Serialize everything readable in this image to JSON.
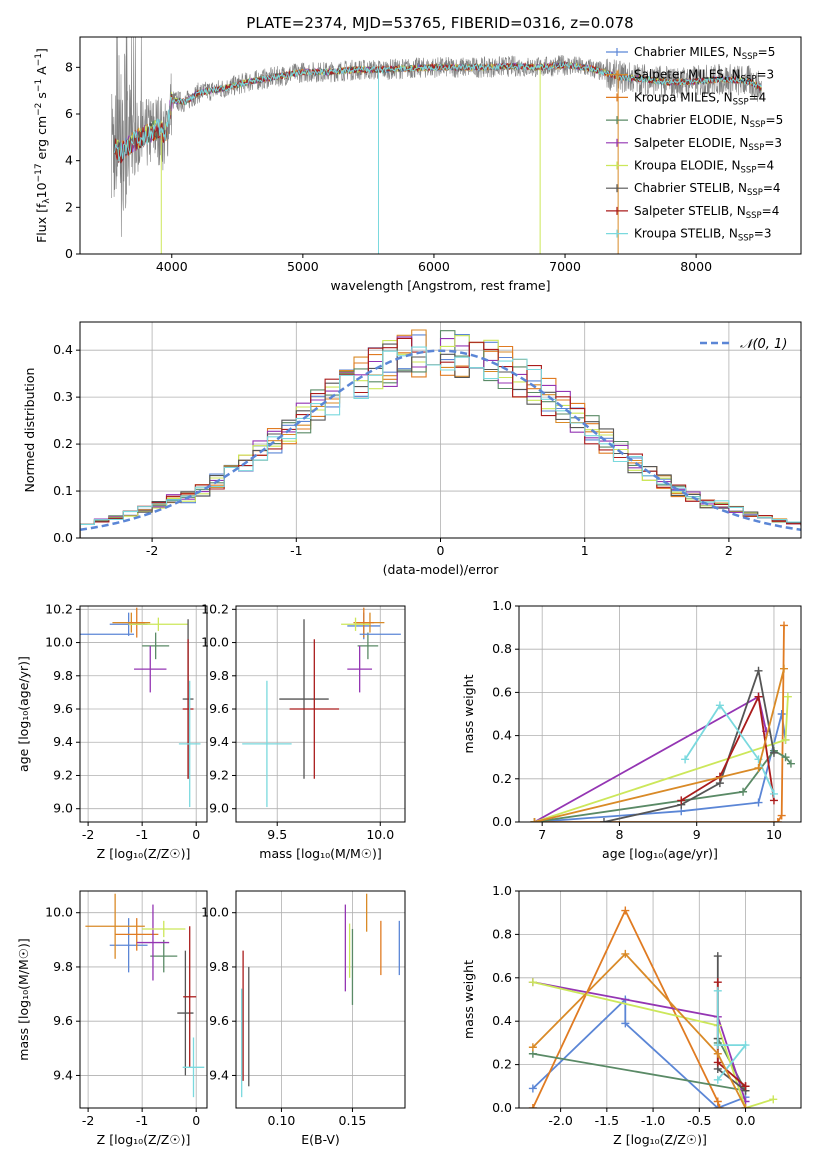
{
  "figure_title": "PLATE=2374, MJD=53765, FIBERID=0316, z=0.078",
  "series": [
    {
      "label": "Chabrier MILES, N",
      "sub": "SSP",
      "n": "=5",
      "color": "#5b86d6"
    },
    {
      "label": "Salpeter MILES, N",
      "sub": "SSP",
      "n": "=3",
      "color": "#d98a27"
    },
    {
      "label": "Kroupa MILES, N",
      "sub": "SSP",
      "n": "=4",
      "color": "#e07b22"
    },
    {
      "label": "Chabrier ELODIE, N",
      "sub": "SSP",
      "n": "=5",
      "color": "#5a8a66"
    },
    {
      "label": "Salpeter ELODIE, N",
      "sub": "SSP",
      "n": "=3",
      "color": "#9435b3"
    },
    {
      "label": "Kroupa ELODIE, N",
      "sub": "SSP",
      "n": "=4",
      "color": "#cce75a"
    },
    {
      "label": "Chabrier STELIB, N",
      "sub": "SSP",
      "n": "=4",
      "color": "#555555"
    },
    {
      "label": "Salpeter STELIB, N",
      "sub": "SSP",
      "n": "=4",
      "color": "#aa1c1c"
    },
    {
      "label": "Kroupa STELIB, N",
      "sub": "SSP",
      "n": "=3",
      "color": "#7ad9de"
    }
  ],
  "chart_data": [
    {
      "id": "spectrum",
      "type": "line",
      "xlabel": "wavelength [Angstrom, rest frame]",
      "ylabel_parts": [
        "Flux [f",
        "λ",
        "10",
        "−17",
        " erg cm",
        "−2",
        " s",
        "−1",
        " A",
        "−1",
        "]"
      ],
      "xlim": [
        3300,
        8800
      ],
      "ylim": [
        0,
        9.3
      ],
      "xticks": [
        4000,
        5000,
        6000,
        7000,
        8000
      ],
      "yticks": [
        0,
        2,
        4,
        6,
        8
      ],
      "data_color": "#808080",
      "model_color": "#7ad9de",
      "continuum_x": [
        3540,
        3600,
        3700,
        3800,
        3900,
        3950,
        4000,
        4100,
        4200,
        4400,
        4600,
        4800,
        5000,
        5200,
        5400,
        5600,
        5800,
        6000,
        6200,
        6400,
        6600,
        6800,
        7000,
        7200,
        7400,
        7600,
        7800,
        8000,
        8200,
        8400,
        8500
      ],
      "continuum_y": [
        5.0,
        4.3,
        4.8,
        5.1,
        5.4,
        5.0,
        6.6,
        6.5,
        6.9,
        7.1,
        7.4,
        7.6,
        7.8,
        7.8,
        7.9,
        7.9,
        7.95,
        8.0,
        8.0,
        8.0,
        8.05,
        8.0,
        8.1,
        7.95,
        7.6,
        7.5,
        7.35,
        7.4,
        7.5,
        7.4,
        7.1
      ]
    },
    {
      "id": "residuals",
      "type": "histogram",
      "xlabel": "(data-model)/error",
      "ylabel": "Normed distribution",
      "xlim": [
        -2.5,
        2.5
      ],
      "ylim": [
        0,
        0.46
      ],
      "xticks": [
        -2,
        -1,
        0,
        1,
        2
      ],
      "yticks": [
        0.0,
        0.1,
        0.2,
        0.3,
        0.4
      ],
      "legend": "𝒩(0, 1)",
      "legend_color": "#5b86d6",
      "bin_width": 0.1,
      "x_start": -2.5,
      "base": [
        0.025,
        0.03,
        0.035,
        0.04,
        0.045,
        0.055,
        0.06,
        0.065,
        0.07,
        0.075,
        0.09,
        0.1,
        0.11,
        0.12,
        0.135,
        0.15,
        0.165,
        0.18,
        0.2,
        0.215,
        0.235,
        0.25,
        0.27,
        0.29,
        0.3,
        0.315,
        0.33,
        0.345,
        0.35,
        0.365,
        0.37,
        0.375,
        0.38,
        0.385,
        0.39,
        0.39,
        0.395,
        0.4,
        0.395,
        0.395,
        0.39,
        0.385,
        0.38,
        0.375,
        0.36,
        0.355,
        0.345,
        0.335,
        0.32,
        0.305,
        0.295,
        0.28,
        0.265,
        0.25,
        0.23,
        0.215,
        0.2,
        0.185,
        0.17,
        0.155,
        0.14,
        0.125,
        0.11,
        0.1,
        0.09,
        0.08,
        0.07,
        0.065,
        0.055,
        0.05,
        0.045,
        0.04,
        0.035,
        0.03,
        0.028,
        0.025,
        0.022,
        0.02,
        0.018,
        0.016,
        0.015,
        0.014,
        0.013,
        0.012,
        0.011,
        0.01,
        0.01,
        0.01,
        0.01,
        0.01,
        0.01,
        0.01,
        0.01,
        0.01,
        0.01,
        0.01,
        0.01,
        0.01,
        0.01,
        0.01
      ]
    },
    {
      "id": "age_vs_Z",
      "type": "scatter",
      "xlabel": "Z [log₁₀(Z/Z☉)]",
      "ylabel": "age  [log₁₀(age/yr)]",
      "xlim": [
        -2.15,
        0.2
      ],
      "ylim": [
        8.92,
        10.22
      ],
      "xticks": [
        -2,
        -1,
        0
      ],
      "yticks": [
        9.0,
        9.2,
        9.4,
        9.6,
        9.8,
        10.0,
        10.2
      ],
      "points": [
        {
          "s": 0,
          "x": -1.25,
          "y": 10.11,
          "xerr": 0.35,
          "yerr": 0.07
        },
        {
          "s": 1,
          "x": -1.2,
          "y": 10.12,
          "xerr": 0.35,
          "yerr": 0.06
        },
        {
          "s": 2,
          "x": -1.1,
          "y": 10.12,
          "xerr": 0.15,
          "yerr": 0.09
        },
        {
          "s": 3,
          "x": -0.75,
          "y": 9.98,
          "xerr": 0.25,
          "yerr": 0.08
        },
        {
          "s": 4,
          "x": -0.85,
          "y": 9.84,
          "xerr": 0.3,
          "yerr": 0.14
        },
        {
          "s": 5,
          "x": -0.7,
          "y": 10.11,
          "xerr": 0.55,
          "yerr": 0.04
        },
        {
          "s": 6,
          "x": -0.15,
          "y": 9.66,
          "xerr": 0.1,
          "yerr": 0.48
        },
        {
          "s": 7,
          "x": -0.15,
          "y": 9.6,
          "xerr": 0.1,
          "yerr": 0.42
        },
        {
          "s": 8,
          "x": -0.12,
          "y": 9.39,
          "xerr": 0.2,
          "yerr": 0.38
        },
        {
          "s": 0,
          "x": -1.65,
          "y": 10.05,
          "xerr": 0.5,
          "yerr": 0.0
        }
      ]
    },
    {
      "id": "age_vs_mass",
      "type": "scatter",
      "xlabel": "mass [log₁₀(M/M☉)]",
      "ylabel": "",
      "xlim": [
        9.3,
        10.12
      ],
      "ylim": [
        8.92,
        10.22
      ],
      "xticks": [
        9.5,
        10.0
      ],
      "yticks": [
        9.0,
        9.2,
        9.4,
        9.6,
        9.8,
        10.0,
        10.2
      ],
      "points": [
        {
          "s": 0,
          "x": 9.92,
          "y": 10.1,
          "xerr": 0.08,
          "yerr": 0.08
        },
        {
          "s": 1,
          "x": 9.95,
          "y": 10.12,
          "xerr": 0.07,
          "yerr": 0.06
        },
        {
          "s": 2,
          "x": 9.92,
          "y": 10.12,
          "xerr": 0.05,
          "yerr": 0.09
        },
        {
          "s": 3,
          "x": 9.94,
          "y": 9.98,
          "xerr": 0.05,
          "yerr": 0.08
        },
        {
          "s": 4,
          "x": 9.9,
          "y": 9.84,
          "xerr": 0.06,
          "yerr": 0.14
        },
        {
          "s": 5,
          "x": 9.88,
          "y": 10.11,
          "xerr": 0.07,
          "yerr": 0.04
        },
        {
          "s": 6,
          "x": 9.63,
          "y": 9.66,
          "xerr": 0.12,
          "yerr": 0.48
        },
        {
          "s": 7,
          "x": 9.68,
          "y": 9.6,
          "xerr": 0.12,
          "yerr": 0.42
        },
        {
          "s": 8,
          "x": 9.45,
          "y": 9.39,
          "xerr": 0.12,
          "yerr": 0.38
        },
        {
          "s": 0,
          "x": 10.0,
          "y": 10.05,
          "xerr": 0.1,
          "yerr": 0.0
        }
      ]
    },
    {
      "id": "weight_vs_age",
      "type": "line",
      "xlabel": "age  [log₁₀(age/yr)]",
      "ylabel": "mass weight",
      "xlim": [
        6.7,
        10.35
      ],
      "ylim": [
        0,
        1.0
      ],
      "xticks": [
        7,
        8,
        9,
        10
      ],
      "yticks": [
        0.0,
        0.2,
        0.4,
        0.6,
        0.8,
        1.0
      ],
      "lines": [
        {
          "s": 0,
          "x": [
            6.9,
            8.8,
            9.8,
            10.1,
            10.15
          ],
          "y": [
            0.0,
            0.05,
            0.09,
            0.5,
            0.38
          ]
        },
        {
          "s": 2,
          "x": [
            6.9,
            10.05,
            10.1,
            10.13
          ],
          "y": [
            0.0,
            0.0,
            0.03,
            0.91
          ]
        },
        {
          "s": 3,
          "x": [
            6.9,
            9.6,
            10.0,
            10.15,
            10.22
          ],
          "y": [
            0.0,
            0.14,
            0.33,
            0.3,
            0.27
          ]
        },
        {
          "s": 4,
          "x": [
            6.9,
            9.8,
            9.9
          ],
          "y": [
            0.0,
            0.58,
            0.42
          ]
        },
        {
          "s": 5,
          "x": [
            6.9,
            10.15,
            10.18
          ],
          "y": [
            0.0,
            0.38,
            0.58
          ]
        },
        {
          "s": 6,
          "x": [
            7.8,
            8.8,
            9.3,
            9.8,
            10.0
          ],
          "y": [
            0.0,
            0.08,
            0.18,
            0.7,
            0.32
          ]
        },
        {
          "s": 7,
          "x": [
            8.8,
            9.3,
            9.8,
            10.0
          ],
          "y": [
            0.1,
            0.21,
            0.58,
            0.1
          ]
        },
        {
          "s": 8,
          "x": [
            8.85,
            9.3,
            9.8,
            10.0
          ],
          "y": [
            0.29,
            0.54,
            0.29,
            0.13
          ]
        },
        {
          "s": 1,
          "x": [
            6.9,
            9.8,
            10.13
          ],
          "y": [
            0.0,
            0.25,
            0.71
          ]
        }
      ]
    },
    {
      "id": "mass_vs_Z",
      "type": "scatter",
      "xlabel": "Z [log₁₀(Z/Z☉)]",
      "ylabel": "mass [log₁₀(M/M☉)]",
      "xlim": [
        -2.15,
        0.2
      ],
      "ylim": [
        9.28,
        10.08
      ],
      "xticks": [
        -2,
        -1,
        0
      ],
      "yticks": [
        9.4,
        9.6,
        9.8,
        10.0
      ],
      "points": [
        {
          "s": 0,
          "x": -1.25,
          "y": 9.88,
          "xerr": 0.35,
          "yerr": 0.1
        },
        {
          "s": 2,
          "x": -1.1,
          "y": 9.92,
          "xerr": 0.4,
          "yerr": 0.06
        },
        {
          "s": 3,
          "x": -0.6,
          "y": 9.84,
          "xerr": 0.25,
          "yerr": 0.06
        },
        {
          "s": 4,
          "x": -0.8,
          "y": 9.89,
          "xerr": 0.3,
          "yerr": 0.14
        },
        {
          "s": 5,
          "x": -0.6,
          "y": 9.94,
          "xerr": 0.4,
          "yerr": 0.03
        },
        {
          "s": 6,
          "x": -0.2,
          "y": 9.63,
          "xerr": 0.15,
          "yerr": 0.23
        },
        {
          "s": 7,
          "x": -0.12,
          "y": 9.69,
          "xerr": 0.12,
          "yerr": 0.26
        },
        {
          "s": 8,
          "x": -0.05,
          "y": 9.43,
          "xerr": 0.2,
          "yerr": 0.11
        },
        {
          "s": 1,
          "x": -1.5,
          "y": 9.95,
          "xerr": 0.55,
          "yerr": 0.12
        }
      ]
    },
    {
      "id": "mass_vs_ebv",
      "type": "scatter",
      "xlabel": "E(B-V)",
      "ylabel": "",
      "xlim": [
        0.068,
        0.187
      ],
      "ylim": [
        9.28,
        10.08
      ],
      "xticks": [
        0.1,
        0.15
      ],
      "yticks": [
        9.4,
        9.6,
        9.8,
        10.0
      ],
      "points": [
        {
          "s": 0,
          "x": 0.183,
          "y": 9.87,
          "xerr": 0,
          "yerr": 0.1
        },
        {
          "s": 2,
          "x": 0.17,
          "y": 9.87,
          "xerr": 0,
          "yerr": 0.1
        },
        {
          "s": 1,
          "x": 0.16,
          "y": 10.0,
          "xerr": 0,
          "yerr": 0.07
        },
        {
          "s": 3,
          "x": 0.15,
          "y": 9.8,
          "xerr": 0,
          "yerr": 0.14
        },
        {
          "s": 4,
          "x": 0.145,
          "y": 9.87,
          "xerr": 0,
          "yerr": 0.16
        },
        {
          "s": 5,
          "x": 0.148,
          "y": 9.86,
          "xerr": 0,
          "yerr": 0.1
        },
        {
          "s": 6,
          "x": 0.077,
          "y": 9.58,
          "xerr": 0,
          "yerr": 0.22
        },
        {
          "s": 7,
          "x": 0.073,
          "y": 9.62,
          "xerr": 0,
          "yerr": 0.24
        },
        {
          "s": 8,
          "x": 0.072,
          "y": 9.52,
          "xerr": 0,
          "yerr": 0.2
        }
      ]
    },
    {
      "id": "weight_vs_Z",
      "type": "line",
      "xlabel": "Z [log₁₀(Z/Z☉)]",
      "ylabel": "mass weight",
      "xlim": [
        -2.45,
        0.6
      ],
      "ylim": [
        0,
        1.0
      ],
      "xticks": [
        -2.0,
        -1.5,
        -1.0,
        -0.5,
        0.0
      ],
      "yticks": [
        0.0,
        0.2,
        0.4,
        0.6,
        0.8,
        1.0
      ],
      "lines": [
        {
          "s": 0,
          "x": [
            -2.3,
            -1.3,
            -1.3,
            -0.3,
            0.0
          ],
          "y": [
            0.09,
            0.5,
            0.39,
            0.0,
            0.05
          ]
        },
        {
          "s": 2,
          "x": [
            -2.3,
            -1.3,
            -0.3,
            -0.28
          ],
          "y": [
            0.0,
            0.91,
            0.03,
            0.0
          ]
        },
        {
          "s": 3,
          "x": [
            -2.3,
            0.0,
            -0.3,
            -0.3
          ],
          "y": [
            0.25,
            0.08,
            0.32,
            0.3
          ]
        },
        {
          "s": 4,
          "x": [
            -2.3,
            -0.3,
            0.0
          ],
          "y": [
            0.58,
            0.42,
            0.03
          ]
        },
        {
          "s": 5,
          "x": [
            -2.3,
            -0.3,
            0.0,
            0.3
          ],
          "y": [
            0.58,
            0.38,
            0.0,
            0.04
          ]
        },
        {
          "s": 6,
          "x": [
            -0.3,
            -0.3,
            -0.3,
            0.0
          ],
          "y": [
            0.7,
            0.32,
            0.18,
            0.08
          ]
        },
        {
          "s": 7,
          "x": [
            -0.3,
            -0.3,
            0.0,
            0.0
          ],
          "y": [
            0.58,
            0.21,
            0.1,
            0.1
          ]
        },
        {
          "s": 8,
          "x": [
            -0.3,
            0.0,
            -0.3,
            -0.3
          ],
          "y": [
            0.13,
            0.29,
            0.29,
            0.54
          ]
        },
        {
          "s": 1,
          "x": [
            -2.3,
            -1.3,
            -0.3,
            0.0
          ],
          "y": [
            0.28,
            0.71,
            0.25,
            0.0
          ]
        }
      ]
    }
  ]
}
